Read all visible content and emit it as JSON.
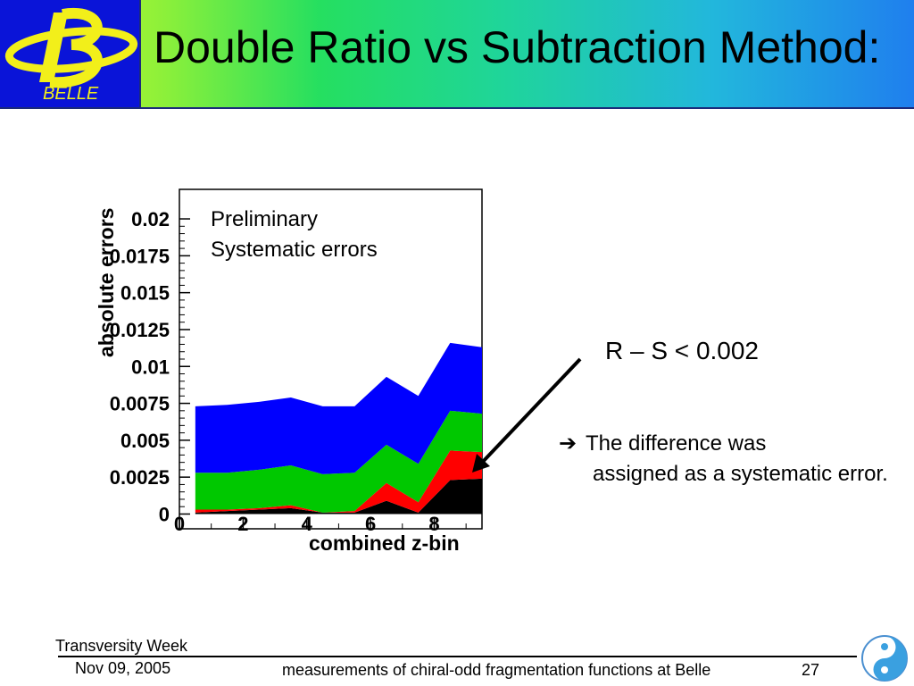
{
  "slide": {
    "title": "Double Ratio vs Subtraction Method:",
    "logo_text": "BELLE",
    "result_text": "R – S < 0.002",
    "bullet_first": "The difference was",
    "bullet_rest": "assigned as a systematic error.",
    "footer": {
      "conference": "Transversity Week",
      "date": "Nov 09, 2005",
      "center": "measurements of chiral-odd fragmentation functions at Belle",
      "page": "27"
    },
    "colors": {
      "logo_bg": "#0a14d8",
      "logo_fg": "#f2ef1a",
      "arrow": "#000000"
    }
  },
  "chart_data": {
    "type": "area",
    "stacked": true,
    "x": [
      0,
      1,
      2,
      3,
      4,
      5,
      6,
      7,
      8,
      9
    ],
    "xlim": [
      0,
      9.5
    ],
    "ylim": [
      -0.001,
      0.022
    ],
    "xticks": [
      0,
      2,
      4,
      6,
      8
    ],
    "yticks": [
      "0",
      "0.0025",
      "0.005",
      "0.0075",
      "0.01",
      "0.0125",
      "0.015",
      "0.0175",
      "0.02"
    ],
    "xlabel": "combined z-bin",
    "ylabel": "absolute errors",
    "annotation": [
      "Preliminary",
      "Systematic errors"
    ],
    "series": [
      {
        "color": "#000000",
        "values": [
          0.0001,
          0.0002,
          0.0003,
          0.0004,
          0.0001,
          0.0001,
          0.0009,
          0.0001,
          0.0023,
          0.0024
        ]
      },
      {
        "color": "#ff0000",
        "values": [
          0.0002,
          0.0001,
          0.0001,
          0.0002,
          0.0,
          0.0001,
          0.0012,
          0.0007,
          0.002,
          0.0018
        ]
      },
      {
        "color": "#00c800",
        "values": [
          0.0025,
          0.0025,
          0.0026,
          0.0027,
          0.0026,
          0.0026,
          0.0026,
          0.0026,
          0.0027,
          0.0026
        ]
      },
      {
        "color": "#0000ff",
        "values": [
          0.0045,
          0.0046,
          0.0046,
          0.0046,
          0.0046,
          0.0045,
          0.0046,
          0.0046,
          0.0046,
          0.0045
        ]
      }
    ]
  }
}
